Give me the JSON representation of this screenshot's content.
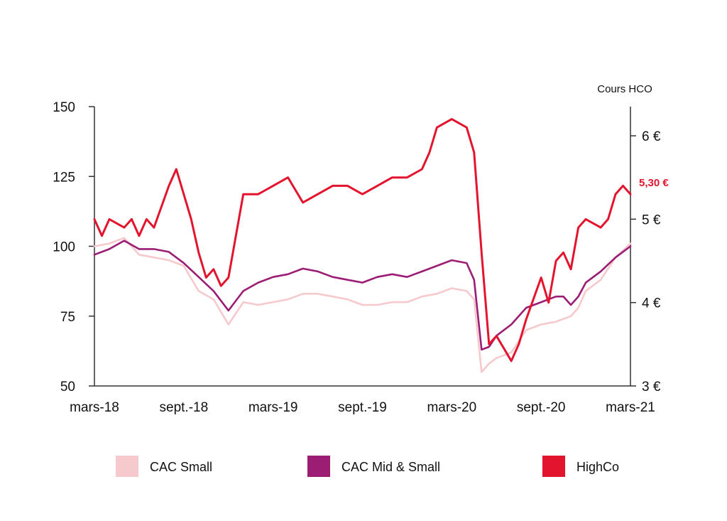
{
  "chart_data": {
    "type": "line",
    "right_axis_title": "Cours HCO",
    "last_value_label": "5,30 €",
    "x_tick_labels": [
      "mars-18",
      "sept.-18",
      "mars-19",
      "sept.-19",
      "mars-20",
      "sept.-20",
      "mars-21"
    ],
    "y_left": {
      "ticks": [
        50,
        75,
        100,
        125,
        150
      ],
      "range": [
        50,
        150
      ]
    },
    "y_right": {
      "ticks": [
        3,
        4,
        5,
        6
      ],
      "tick_labels": [
        "3 €",
        "4 €",
        "5 €",
        "6 €"
      ],
      "range": [
        3.0,
        6.35
      ]
    },
    "x_range": [
      0,
      36
    ],
    "grid": false,
    "legend_position": "bottom",
    "series": [
      {
        "name": "CAC Small",
        "axis": "left",
        "color": "#f6c9cc",
        "points": [
          [
            0,
            100
          ],
          [
            1,
            101
          ],
          [
            2,
            103
          ],
          [
            3,
            97
          ],
          [
            4,
            96
          ],
          [
            5,
            95
          ],
          [
            6,
            93
          ],
          [
            7,
            84
          ],
          [
            8,
            81
          ],
          [
            9,
            72
          ],
          [
            10,
            80
          ],
          [
            11,
            79
          ],
          [
            12,
            80
          ],
          [
            13,
            81
          ],
          [
            14,
            83
          ],
          [
            15,
            83
          ],
          [
            16,
            82
          ],
          [
            17,
            81
          ],
          [
            18,
            79
          ],
          [
            19,
            79
          ],
          [
            20,
            80
          ],
          [
            21,
            80
          ],
          [
            22,
            82
          ],
          [
            23,
            83
          ],
          [
            24,
            85
          ],
          [
            25,
            84
          ],
          [
            25.5,
            81
          ],
          [
            26,
            55
          ],
          [
            26.5,
            58
          ],
          [
            27,
            60
          ],
          [
            28,
            62
          ],
          [
            29,
            70
          ],
          [
            30,
            72
          ],
          [
            31,
            73
          ],
          [
            31.5,
            74
          ],
          [
            32,
            75
          ],
          [
            32.5,
            78
          ],
          [
            33,
            84
          ],
          [
            34,
            88
          ],
          [
            35,
            96
          ],
          [
            36,
            101
          ]
        ]
      },
      {
        "name": "CAC Mid & Small",
        "axis": "left",
        "color": "#9b1d74",
        "points": [
          [
            0,
            97
          ],
          [
            1,
            99
          ],
          [
            2,
            102
          ],
          [
            3,
            99
          ],
          [
            4,
            99
          ],
          [
            5,
            98
          ],
          [
            6,
            94
          ],
          [
            7,
            89
          ],
          [
            8,
            84
          ],
          [
            9,
            77
          ],
          [
            10,
            84
          ],
          [
            11,
            87
          ],
          [
            12,
            89
          ],
          [
            13,
            90
          ],
          [
            14,
            92
          ],
          [
            15,
            91
          ],
          [
            16,
            89
          ],
          [
            17,
            88
          ],
          [
            18,
            87
          ],
          [
            19,
            89
          ],
          [
            20,
            90
          ],
          [
            21,
            89
          ],
          [
            22,
            91
          ],
          [
            23,
            93
          ],
          [
            24,
            95
          ],
          [
            25,
            94
          ],
          [
            25.5,
            88
          ],
          [
            26,
            63
          ],
          [
            26.5,
            64
          ],
          [
            27,
            68
          ],
          [
            28,
            72
          ],
          [
            29,
            78
          ],
          [
            30,
            80
          ],
          [
            31,
            82
          ],
          [
            31.5,
            82
          ],
          [
            32,
            79
          ],
          [
            32.5,
            82
          ],
          [
            33,
            87
          ],
          [
            34,
            91
          ],
          [
            35,
            96
          ],
          [
            36,
            100
          ]
        ]
      },
      {
        "name": "HighCo",
        "axis": "right",
        "color": "#e3142e",
        "points": [
          [
            0,
            5.0
          ],
          [
            0.5,
            4.8
          ],
          [
            1,
            5.0
          ],
          [
            2,
            4.9
          ],
          [
            2.5,
            5.0
          ],
          [
            3,
            4.8
          ],
          [
            3.5,
            5.0
          ],
          [
            4,
            4.9
          ],
          [
            5,
            5.4
          ],
          [
            5.5,
            5.6
          ],
          [
            6,
            5.3
          ],
          [
            6.5,
            5.0
          ],
          [
            7,
            4.6
          ],
          [
            7.5,
            4.3
          ],
          [
            8,
            4.4
          ],
          [
            8.5,
            4.2
          ],
          [
            9,
            4.3
          ],
          [
            10,
            5.3
          ],
          [
            11,
            5.3
          ],
          [
            12,
            5.4
          ],
          [
            13,
            5.5
          ],
          [
            14,
            5.2
          ],
          [
            15,
            5.3
          ],
          [
            16,
            5.4
          ],
          [
            17,
            5.4
          ],
          [
            18,
            5.3
          ],
          [
            19,
            5.4
          ],
          [
            20,
            5.5
          ],
          [
            21,
            5.5
          ],
          [
            22,
            5.6
          ],
          [
            22.5,
            5.8
          ],
          [
            23,
            6.1
          ],
          [
            24,
            6.2
          ],
          [
            25,
            6.1
          ],
          [
            25.5,
            5.8
          ],
          [
            26,
            4.6
          ],
          [
            26.5,
            3.5
          ],
          [
            27,
            3.6
          ],
          [
            28,
            3.3
          ],
          [
            28.5,
            3.5
          ],
          [
            29,
            3.8
          ],
          [
            30,
            4.3
          ],
          [
            30.5,
            4.0
          ],
          [
            31,
            4.5
          ],
          [
            31.5,
            4.6
          ],
          [
            32,
            4.4
          ],
          [
            32.5,
            4.9
          ],
          [
            33,
            5.0
          ],
          [
            34,
            4.9
          ],
          [
            34.5,
            5.0
          ],
          [
            35,
            5.3
          ],
          [
            35.5,
            5.4
          ],
          [
            36,
            5.3
          ]
        ]
      }
    ]
  }
}
